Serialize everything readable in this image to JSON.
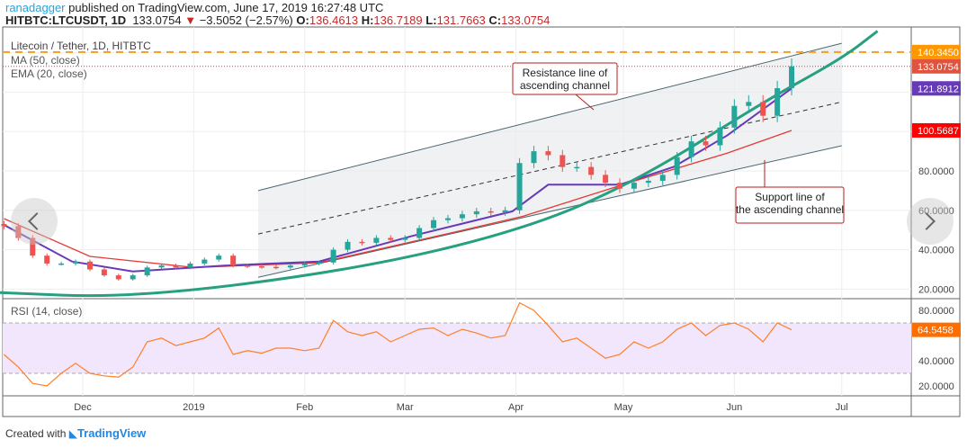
{
  "header": {
    "user": "ranadagger",
    "published": "published on TradingView.com, June 17, 2019 16:27:48 UTC",
    "symbol": "HITBTC:LTCUSDT, 1D",
    "last": "133.0754",
    "change": "−3.5052 (−2.57%)",
    "o_label": "O:",
    "o": "136.4613",
    "h_label": "H:",
    "h": "136.7189",
    "l_label": "L:",
    "l": "131.7663",
    "c_label": "C:",
    "c": "133.0754"
  },
  "legend": {
    "title": "Litecoin / Tether, 1D, HITBTC",
    "ma": "MA (50, close)",
    "ema": "EMA (20, close)",
    "rsi": "RSI (14, close)"
  },
  "footer": {
    "created": "Created with",
    "brand": "TradingView"
  },
  "colors": {
    "up": "#26a69a",
    "down": "#ef5350",
    "ma": "#e53935",
    "ema": "#673ab7",
    "curve": "#26a07f",
    "rsi": "#ff7f27",
    "resistance": "#f59f1b"
  },
  "chart_data": [
    {
      "type": "candlestick",
      "title": "Litecoin / Tether, 1D, HITBTC",
      "x_ticks": [
        "Dec",
        "2019",
        "Feb",
        "Mar",
        "Apr",
        "May",
        "Jun",
        "Jul"
      ],
      "x_tick_dates": [
        "2018-12-01",
        "2019-01-01",
        "2019-02-01",
        "2019-03-01",
        "2019-04-01",
        "2019-05-01",
        "2019-06-01",
        "2019-07-01"
      ],
      "y_ticks": [
        "80.0000",
        "60.0000",
        "40.0000",
        "20.0000"
      ],
      "y_tick_values": [
        80,
        60,
        40,
        20
      ],
      "price_labels": [
        {
          "value": 140.345,
          "text": "140.3450",
          "color": "#ff9800"
        },
        {
          "value": 133.0754,
          "text": "133.0754",
          "color": "#e0533f"
        },
        {
          "value": 121.8912,
          "text": "121.8912",
          "color": "#673ab7"
        },
        {
          "value": 100.5687,
          "text": "100.5687",
          "color": "#ff0000"
        }
      ],
      "dates": [
        "2018-11-09",
        "2018-11-13",
        "2018-11-17",
        "2018-11-21",
        "2018-11-25",
        "2018-11-29",
        "2018-12-03",
        "2018-12-07",
        "2018-12-11",
        "2018-12-15",
        "2018-12-19",
        "2018-12-23",
        "2018-12-27",
        "2018-12-31",
        "2019-01-04",
        "2019-01-08",
        "2019-01-12",
        "2019-01-16",
        "2019-01-20",
        "2019-01-24",
        "2019-01-28",
        "2019-02-01",
        "2019-02-05",
        "2019-02-09",
        "2019-02-13",
        "2019-02-17",
        "2019-02-21",
        "2019-02-25",
        "2019-03-01",
        "2019-03-05",
        "2019-03-09",
        "2019-03-13",
        "2019-03-17",
        "2019-03-21",
        "2019-03-25",
        "2019-03-29",
        "2019-04-02",
        "2019-04-06",
        "2019-04-10",
        "2019-04-14",
        "2019-04-18",
        "2019-04-22",
        "2019-04-26",
        "2019-04-30",
        "2019-05-04",
        "2019-05-08",
        "2019-05-12",
        "2019-05-16",
        "2019-05-20",
        "2019-05-24",
        "2019-05-28",
        "2019-06-01",
        "2019-06-05",
        "2019-06-09",
        "2019-06-13",
        "2019-06-17"
      ],
      "close": [
        52,
        46,
        37,
        33,
        33,
        34,
        30,
        27,
        25,
        27,
        31,
        32,
        31,
        33,
        35,
        37,
        32,
        31.6,
        31.3,
        31,
        32,
        33,
        33.5,
        40,
        44,
        43.5,
        46,
        45,
        46,
        51,
        55,
        56,
        58,
        59.5,
        59,
        60,
        84,
        90,
        88,
        82,
        82,
        78,
        74,
        71,
        74,
        75,
        78,
        87,
        95,
        93,
        102,
        113,
        115,
        108,
        122,
        133.08
      ],
      "rsi": [
        45,
        35,
        22,
        20,
        30,
        38,
        30,
        28,
        27,
        35,
        55,
        58,
        52,
        55,
        58,
        66,
        45,
        48,
        46,
        50,
        50,
        48,
        50,
        72,
        63,
        60,
        63,
        55,
        60,
        65,
        66,
        60,
        65,
        62,
        58,
        60,
        86,
        80,
        68,
        55,
        58,
        50,
        42,
        45,
        55,
        50,
        55,
        65,
        70,
        60,
        68,
        70,
        65,
        55,
        70,
        64.55
      ],
      "ma50": [
        {
          "date": "2018-11-09",
          "value": 55.8
        },
        {
          "date": "2018-12-03",
          "value": 36.6
        },
        {
          "date": "2019-01-01",
          "value": 31
        },
        {
          "date": "2019-02-05",
          "value": 33.4
        },
        {
          "date": "2019-03-15",
          "value": 49
        },
        {
          "date": "2019-04-03",
          "value": 57
        },
        {
          "date": "2019-05-05",
          "value": 75.4
        },
        {
          "date": "2019-05-30",
          "value": 89
        },
        {
          "date": "2019-06-17",
          "value": 100.57
        }
      ],
      "ema20": [
        {
          "date": "2018-11-09",
          "value": 52.6
        },
        {
          "date": "2018-11-28",
          "value": 34
        },
        {
          "date": "2018-12-15",
          "value": 29
        },
        {
          "date": "2019-01-10",
          "value": 32
        },
        {
          "date": "2019-02-05",
          "value": 34
        },
        {
          "date": "2019-03-03",
          "value": 47
        },
        {
          "date": "2019-03-31",
          "value": 59.5
        },
        {
          "date": "2019-04-10",
          "value": 73
        },
        {
          "date": "2019-04-30",
          "value": 73
        },
        {
          "date": "2019-05-15",
          "value": 82
        },
        {
          "date": "2019-05-30",
          "value": 98
        },
        {
          "date": "2019-06-17",
          "value": 121.89
        }
      ],
      "trend_curve": [
        {
          "date": "2018-11-06",
          "value": 18.4
        },
        {
          "date": "2018-12-15",
          "value": 15.5
        },
        {
          "date": "2019-02-15",
          "value": 29.8
        },
        {
          "date": "2019-04-03",
          "value": 50
        },
        {
          "date": "2019-05-05",
          "value": 75
        },
        {
          "date": "2019-06-10",
          "value": 116
        },
        {
          "date": "2019-07-01",
          "value": 137
        },
        {
          "date": "2019-07-11",
          "value": 151
        }
      ],
      "channel": {
        "start": "2019-01-19",
        "end": "2019-07-01",
        "resistance": [
          70,
          144.8
        ],
        "middle": [
          48,
          115
        ],
        "support": [
          26,
          92.8
        ]
      },
      "horizontal_lines": [
        {
          "value": 140.345,
          "style": "dashed"
        },
        {
          "value": 133.0754,
          "style": "dotted"
        }
      ],
      "annotations": [
        "Resistance line of ascending channel",
        "Support line of the ascending channel"
      ],
      "rsi_pane": {
        "title": "RSI (14, close)",
        "y_ticks": [
          "80.0000",
          "40.0000",
          "20.0000"
        ],
        "y_tick_values": [
          80,
          40,
          20
        ],
        "bands": [
          70,
          30
        ],
        "last": "64.5458"
      },
      "grid": true
    }
  ]
}
